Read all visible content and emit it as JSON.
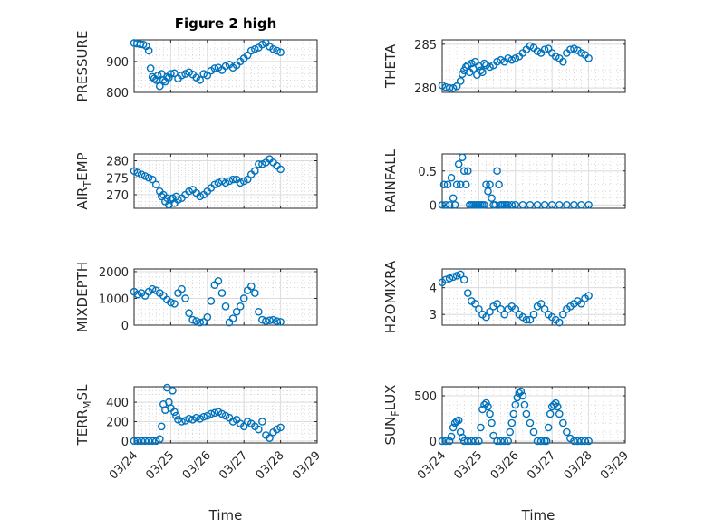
{
  "figure": {
    "title": "Figure 2 high",
    "xlabel": "Time"
  },
  "chart_data": [
    {
      "type": "scatter",
      "ylabel_main": "PRESSURE",
      "ylabel_sub": "",
      "ylabel_tail": "",
      "ylim": [
        800,
        970
      ],
      "yticks": [
        800,
        900
      ],
      "ytick_labels": [
        "800",
        "900"
      ],
      "xlim": [
        0,
        5
      ],
      "xtick_labels": [
        "03/24",
        "03/25",
        "03/26",
        "03/27",
        "03/28",
        "03/29"
      ],
      "show_xticklabels": false,
      "series": [
        {
          "x": [
            0,
            0.08,
            0.17,
            0.25,
            0.33,
            0.4,
            0.45,
            0.5,
            0.55,
            0.6,
            0.65,
            0.7,
            0.75,
            0.8,
            0.85,
            0.9,
            0.95,
            1.0,
            1.1,
            1.2,
            1.3,
            1.4,
            1.5,
            1.6,
            1.7,
            1.8,
            1.9,
            2.0,
            2.1,
            2.2,
            2.3,
            2.4,
            2.5,
            2.6,
            2.7,
            2.8,
            2.9,
            3.0,
            3.1,
            3.2,
            3.3,
            3.4,
            3.5,
            3.6,
            3.7,
            3.8,
            3.9,
            4.0
          ],
          "y": [
            960,
            958,
            956,
            955,
            950,
            935,
            878,
            850,
            845,
            840,
            855,
            820,
            860,
            840,
            835,
            850,
            848,
            860,
            862,
            845,
            855,
            860,
            865,
            858,
            848,
            840,
            860,
            855,
            870,
            878,
            880,
            872,
            885,
            890,
            880,
            888,
            900,
            910,
            920,
            935,
            940,
            945,
            955,
            960,
            948,
            940,
            935,
            930
          ]
        }
      ]
    },
    {
      "type": "scatter",
      "ylabel_main": "THETA",
      "ylabel_sub": "",
      "ylabel_tail": "",
      "ylim": [
        279.5,
        285.5
      ],
      "yticks": [
        280,
        285
      ],
      "ytick_labels": [
        "280",
        "285"
      ],
      "xlim": [
        0,
        5
      ],
      "xtick_labels": [
        "03/24",
        "03/25",
        "03/26",
        "03/27",
        "03/28",
        "03/29"
      ],
      "show_xticklabels": false,
      "series": [
        {
          "x": [
            0,
            0.1,
            0.2,
            0.3,
            0.4,
            0.5,
            0.55,
            0.6,
            0.65,
            0.7,
            0.75,
            0.8,
            0.85,
            0.9,
            0.95,
            1.0,
            1.05,
            1.1,
            1.15,
            1.2,
            1.3,
            1.4,
            1.5,
            1.6,
            1.7,
            1.8,
            1.9,
            2.0,
            2.1,
            2.2,
            2.3,
            2.4,
            2.5,
            2.6,
            2.7,
            2.8,
            2.9,
            3.0,
            3.1,
            3.2,
            3.3,
            3.4,
            3.5,
            3.6,
            3.7,
            3.8,
            3.9,
            4.0
          ],
          "y": [
            280.3,
            280.1,
            280.0,
            280.0,
            280.2,
            280.8,
            281.6,
            282.0,
            282.4,
            282.6,
            281.8,
            282.8,
            282.2,
            283.0,
            281.5,
            282.5,
            282.0,
            281.8,
            282.8,
            282.6,
            282.4,
            282.6,
            283.0,
            283.2,
            283.0,
            283.4,
            283.2,
            283.4,
            283.6,
            284.0,
            284.4,
            284.8,
            284.6,
            284.2,
            284.0,
            284.4,
            284.5,
            284.0,
            283.6,
            283.4,
            283.0,
            284.0,
            284.4,
            284.5,
            284.3,
            284.0,
            283.8,
            283.4
          ]
        }
      ]
    },
    {
      "type": "scatter",
      "ylabel_main": "AIR",
      "ylabel_sub": "T",
      "ylabel_tail": "EMP",
      "ylim": [
        266,
        282
      ],
      "yticks": [
        270,
        275,
        280
      ],
      "ytick_labels": [
        "270",
        "275",
        "280"
      ],
      "xlim": [
        0,
        5
      ],
      "xtick_labels": [
        "03/24",
        "03/25",
        "03/26",
        "03/27",
        "03/28",
        "03/29"
      ],
      "show_xticklabels": false,
      "series": [
        {
          "x": [
            0,
            0.1,
            0.2,
            0.3,
            0.4,
            0.5,
            0.6,
            0.7,
            0.75,
            0.8,
            0.85,
            0.9,
            0.95,
            1.0,
            1.05,
            1.1,
            1.15,
            1.2,
            1.3,
            1.4,
            1.5,
            1.6,
            1.7,
            1.8,
            1.9,
            2.0,
            2.1,
            2.2,
            2.3,
            2.4,
            2.5,
            2.6,
            2.7,
            2.8,
            2.9,
            3.0,
            3.1,
            3.2,
            3.3,
            3.4,
            3.5,
            3.6,
            3.7,
            3.8,
            3.9,
            4.0
          ],
          "y": [
            277,
            276.5,
            276,
            275.5,
            275,
            274.5,
            273,
            271,
            269.5,
            270,
            268,
            269,
            267,
            268.5,
            269,
            267.5,
            269.5,
            268.5,
            269,
            270,
            271,
            271.5,
            270.5,
            269.5,
            270,
            271,
            272,
            273,
            273.5,
            274,
            273.5,
            274,
            274.5,
            274.5,
            273.5,
            274,
            274.5,
            276,
            277,
            279,
            279,
            279.5,
            280.5,
            279.5,
            278.5,
            277.5
          ]
        }
      ]
    },
    {
      "type": "scatter",
      "ylabel_main": "RAINFALL",
      "ylabel_sub": "",
      "ylabel_tail": "",
      "ylim": [
        -0.05,
        0.75
      ],
      "yticks": [
        0,
        0.5
      ],
      "ytick_labels": [
        "0",
        "0.5"
      ],
      "xlim": [
        0,
        5
      ],
      "xtick_labels": [
        "03/24",
        "03/25",
        "03/26",
        "03/27",
        "03/28",
        "03/29"
      ],
      "show_xticklabels": false,
      "series": [
        {
          "x": [
            0,
            0.05,
            0.1,
            0.15,
            0.2,
            0.25,
            0.3,
            0.35,
            0.4,
            0.45,
            0.5,
            0.55,
            0.6,
            0.65,
            0.7,
            0.75,
            0.8,
            0.85,
            0.9,
            0.95,
            1.0,
            1.05,
            1.1,
            1.15,
            1.2,
            1.25,
            1.3,
            1.35,
            1.4,
            1.45,
            1.5,
            1.55,
            1.6,
            1.65,
            1.7,
            1.75,
            1.8,
            1.9,
            2.0,
            2.2,
            2.4,
            2.6,
            2.8,
            3.0,
            3.2,
            3.4,
            3.6,
            3.8,
            4.0
          ],
          "y": [
            0,
            0.3,
            0,
            0.3,
            0,
            0.4,
            0.1,
            0,
            0.3,
            0.6,
            0.3,
            0.7,
            0.5,
            0.3,
            0.5,
            0,
            0,
            0,
            0,
            0,
            0,
            0,
            0,
            0,
            0.3,
            0.2,
            0.3,
            0.1,
            0,
            0,
            0.5,
            0.3,
            0,
            0,
            0,
            0,
            0,
            0,
            0,
            0,
            0,
            0,
            0,
            0,
            0,
            0,
            0,
            0,
            0
          ]
        }
      ]
    },
    {
      "type": "scatter",
      "ylabel_main": "MIXDEPTH",
      "ylabel_sub": "",
      "ylabel_tail": "",
      "ylim": [
        0,
        2100
      ],
      "yticks": [
        0,
        1000,
        2000
      ],
      "ytick_labels": [
        "0",
        "1000",
        "2000"
      ],
      "xlim": [
        0,
        5
      ],
      "xtick_labels": [
        "03/24",
        "03/25",
        "03/26",
        "03/27",
        "03/28",
        "03/29"
      ],
      "show_xticklabels": false,
      "series": [
        {
          "x": [
            0,
            0.1,
            0.2,
            0.3,
            0.4,
            0.5,
            0.6,
            0.7,
            0.8,
            0.9,
            1.0,
            1.1,
            1.2,
            1.3,
            1.4,
            1.5,
            1.6,
            1.7,
            1.8,
            1.9,
            2.0,
            2.1,
            2.2,
            2.3,
            2.4,
            2.5,
            2.6,
            2.7,
            2.8,
            2.9,
            3.0,
            3.1,
            3.2,
            3.3,
            3.4,
            3.5,
            3.6,
            3.7,
            3.8,
            3.9,
            4.0
          ],
          "y": [
            1250,
            1150,
            1200,
            1100,
            1250,
            1350,
            1300,
            1200,
            1100,
            950,
            850,
            800,
            1200,
            1350,
            1000,
            450,
            200,
            150,
            100,
            120,
            300,
            900,
            1500,
            1650,
            1200,
            700,
            100,
            250,
            500,
            700,
            1000,
            1300,
            1450,
            1200,
            500,
            200,
            150,
            180,
            200,
            150,
            120
          ]
        }
      ]
    },
    {
      "type": "scatter",
      "ylabel_main": "H2OMIXRA",
      "ylabel_sub": "",
      "ylabel_tail": "",
      "ylim": [
        2.6,
        4.7
      ],
      "yticks": [
        3,
        4
      ],
      "ytick_labels": [
        "3",
        "4"
      ],
      "xlim": [
        0,
        5
      ],
      "xtick_labels": [
        "03/24",
        "03/25",
        "03/26",
        "03/27",
        "03/28",
        "03/29"
      ],
      "show_xticklabels": false,
      "series": [
        {
          "x": [
            0,
            0.1,
            0.2,
            0.3,
            0.4,
            0.5,
            0.6,
            0.7,
            0.8,
            0.9,
            1.0,
            1.1,
            1.2,
            1.3,
            1.4,
            1.5,
            1.6,
            1.7,
            1.8,
            1.9,
            2.0,
            2.1,
            2.2,
            2.3,
            2.4,
            2.5,
            2.6,
            2.7,
            2.8,
            2.9,
            3.0,
            3.1,
            3.2,
            3.3,
            3.4,
            3.5,
            3.6,
            3.7,
            3.8,
            3.9,
            4.0
          ],
          "y": [
            4.2,
            4.3,
            4.35,
            4.4,
            4.45,
            4.5,
            4.3,
            3.8,
            3.5,
            3.4,
            3.2,
            3.0,
            2.9,
            3.1,
            3.3,
            3.4,
            3.2,
            3.0,
            3.2,
            3.3,
            3.2,
            3.0,
            2.9,
            2.8,
            2.8,
            3.0,
            3.3,
            3.4,
            3.2,
            3.0,
            2.9,
            2.8,
            2.7,
            3.0,
            3.2,
            3.3,
            3.4,
            3.5,
            3.4,
            3.6,
            3.7
          ]
        }
      ]
    },
    {
      "type": "scatter",
      "ylabel_main": "TERR",
      "ylabel_sub": "M",
      "ylabel_tail": "SL",
      "ylim": [
        -20,
        560
      ],
      "yticks": [
        0,
        200,
        400
      ],
      "ytick_labels": [
        "0",
        "200",
        "400"
      ],
      "xlim": [
        0,
        5
      ],
      "xtick_labels": [
        "03/24",
        "03/25",
        "03/26",
        "03/27",
        "03/28",
        "03/29"
      ],
      "show_xticklabels": true,
      "series": [
        {
          "x": [
            0,
            0.1,
            0.2,
            0.3,
            0.4,
            0.5,
            0.6,
            0.7,
            0.75,
            0.8,
            0.85,
            0.9,
            0.95,
            1.0,
            1.05,
            1.1,
            1.15,
            1.2,
            1.3,
            1.4,
            1.5,
            1.6,
            1.7,
            1.8,
            1.9,
            2.0,
            2.1,
            2.2,
            2.3,
            2.4,
            2.5,
            2.6,
            2.7,
            2.8,
            2.9,
            3.0,
            3.1,
            3.2,
            3.3,
            3.4,
            3.5,
            3.6,
            3.7,
            3.8,
            3.9,
            4.0
          ],
          "y": [
            0,
            0,
            0,
            0,
            0,
            0,
            0,
            20,
            150,
            380,
            320,
            550,
            400,
            340,
            520,
            300,
            260,
            220,
            200,
            210,
            230,
            220,
            240,
            230,
            250,
            260,
            280,
            290,
            300,
            280,
            260,
            240,
            200,
            220,
            180,
            150,
            200,
            180,
            150,
            120,
            200,
            60,
            30,
            90,
            120,
            140
          ]
        }
      ]
    },
    {
      "type": "scatter",
      "ylabel_main": "SUN",
      "ylabel_sub": "F",
      "ylabel_tail": "LUX",
      "ylim": [
        -20,
        600
      ],
      "yticks": [
        0,
        500
      ],
      "ytick_labels": [
        "0",
        "500"
      ],
      "xlim": [
        0,
        5
      ],
      "xtick_labels": [
        "03/24",
        "03/25",
        "03/26",
        "03/27",
        "03/28",
        "03/29"
      ],
      "show_xticklabels": true,
      "series": [
        {
          "x": [
            0,
            0.1,
            0.2,
            0.25,
            0.3,
            0.35,
            0.4,
            0.45,
            0.5,
            0.55,
            0.6,
            0.7,
            0.8,
            0.9,
            1.0,
            1.05,
            1.1,
            1.15,
            1.2,
            1.25,
            1.3,
            1.35,
            1.4,
            1.5,
            1.6,
            1.7,
            1.8,
            1.85,
            1.9,
            1.95,
            2.0,
            2.05,
            2.1,
            2.15,
            2.2,
            2.25,
            2.3,
            2.4,
            2.5,
            2.6,
            2.7,
            2.8,
            2.85,
            2.9,
            2.95,
            3.0,
            3.05,
            3.1,
            3.15,
            3.2,
            3.3,
            3.4,
            3.5,
            3.6,
            3.7,
            3.8,
            3.9,
            4.0
          ],
          "y": [
            0,
            0,
            0,
            50,
            150,
            200,
            220,
            230,
            100,
            40,
            0,
            0,
            0,
            0,
            0,
            150,
            350,
            400,
            420,
            380,
            300,
            200,
            60,
            0,
            0,
            0,
            0,
            100,
            200,
            300,
            400,
            480,
            530,
            550,
            500,
            400,
            300,
            200,
            100,
            0,
            0,
            0,
            0,
            150,
            300,
            380,
            400,
            420,
            380,
            300,
            200,
            100,
            30,
            0,
            0,
            0,
            0,
            0
          ]
        }
      ]
    }
  ]
}
